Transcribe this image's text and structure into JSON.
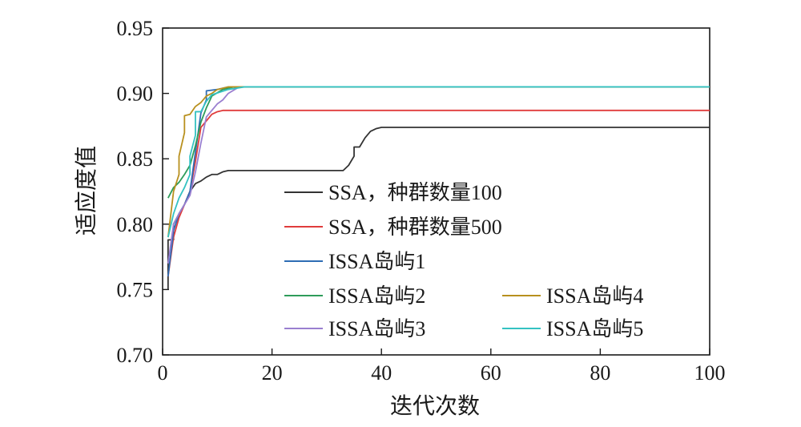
{
  "chart_data": {
    "type": "line",
    "xlabel": "迭代次数",
    "ylabel": "适应度值",
    "xlim": [
      0,
      100
    ],
    "ylim": [
      0.7,
      0.95
    ],
    "xticks": [
      0,
      20,
      40,
      60,
      80,
      100
    ],
    "yticks": [
      0.7,
      0.75,
      0.8,
      0.85,
      0.9,
      0.95
    ],
    "xtick_labels": [
      "0",
      "20",
      "40",
      "60",
      "80",
      "100"
    ],
    "ytick_labels": [
      "0.70",
      "0.75",
      "0.80",
      "0.85",
      "0.90",
      "0.95"
    ],
    "grid": false,
    "legend_position": "inside-lower-center",
    "series": [
      {
        "name": "SSA，种群数量100",
        "color": "#333333",
        "points": [
          [
            1,
            0.75
          ],
          [
            1,
            0.788
          ],
          [
            2,
            0.788
          ],
          [
            2,
            0.8
          ],
          [
            3,
            0.808
          ],
          [
            4,
            0.815
          ],
          [
            5,
            0.825
          ],
          [
            6,
            0.831
          ],
          [
            7,
            0.833
          ],
          [
            8,
            0.836
          ],
          [
            9,
            0.838
          ],
          [
            10,
            0.838
          ],
          [
            11,
            0.84
          ],
          [
            12,
            0.841
          ],
          [
            20,
            0.841
          ],
          [
            30,
            0.841
          ],
          [
            33,
            0.841
          ],
          [
            34,
            0.845
          ],
          [
            35,
            0.852
          ],
          [
            35,
            0.859
          ],
          [
            36,
            0.859
          ],
          [
            37,
            0.866
          ],
          [
            38,
            0.871
          ],
          [
            39,
            0.873
          ],
          [
            40,
            0.874
          ],
          [
            100,
            0.874
          ]
        ]
      },
      {
        "name": "SSA，种群数量500",
        "color": "#e03c3c",
        "points": [
          [
            1,
            0.76
          ],
          [
            2,
            0.79
          ],
          [
            3,
            0.805
          ],
          [
            4,
            0.815
          ],
          [
            5,
            0.825
          ],
          [
            6,
            0.848
          ],
          [
            7,
            0.874
          ],
          [
            8,
            0.879
          ],
          [
            9,
            0.884
          ],
          [
            10,
            0.886
          ],
          [
            11,
            0.887
          ],
          [
            100,
            0.887
          ]
        ]
      },
      {
        "name": "ISSA岛屿1",
        "color": "#2e6db4",
        "points": [
          [
            1,
            0.76
          ],
          [
            2,
            0.795
          ],
          [
            3,
            0.808
          ],
          [
            4,
            0.815
          ],
          [
            5,
            0.825
          ],
          [
            6,
            0.855
          ],
          [
            7,
            0.885
          ],
          [
            8,
            0.895
          ],
          [
            8,
            0.902
          ],
          [
            10,
            0.903
          ],
          [
            12,
            0.905
          ],
          [
            100,
            0.905
          ]
        ]
      },
      {
        "name": "ISSA岛屿2",
        "color": "#2e9c5a",
        "points": [
          [
            1,
            0.82
          ],
          [
            2,
            0.828
          ],
          [
            3,
            0.832
          ],
          [
            4,
            0.838
          ],
          [
            5,
            0.845
          ],
          [
            6,
            0.86
          ],
          [
            7,
            0.878
          ],
          [
            8,
            0.889
          ],
          [
            9,
            0.898
          ],
          [
            11,
            0.903
          ],
          [
            13,
            0.905
          ],
          [
            100,
            0.905
          ]
        ]
      },
      {
        "name": "ISSA岛屿3",
        "color": "#9a7fd0",
        "points": [
          [
            1,
            0.77
          ],
          [
            2,
            0.8
          ],
          [
            3,
            0.808
          ],
          [
            4,
            0.815
          ],
          [
            5,
            0.822
          ],
          [
            6,
            0.84
          ],
          [
            7,
            0.862
          ],
          [
            8,
            0.882
          ],
          [
            9,
            0.887
          ],
          [
            10,
            0.892
          ],
          [
            11,
            0.895
          ],
          [
            12,
            0.9
          ],
          [
            14,
            0.905
          ],
          [
            100,
            0.905
          ]
        ]
      },
      {
        "name": "ISSA岛屿4",
        "color": "#b8901e",
        "points": [
          [
            1,
            0.79
          ],
          [
            2,
            0.825
          ],
          [
            3,
            0.838
          ],
          [
            3,
            0.852
          ],
          [
            4,
            0.87
          ],
          [
            4,
            0.883
          ],
          [
            5,
            0.884
          ],
          [
            6,
            0.89
          ],
          [
            7,
            0.893
          ],
          [
            8,
            0.898
          ],
          [
            9,
            0.9
          ],
          [
            10,
            0.903
          ],
          [
            12,
            0.905
          ],
          [
            100,
            0.905
          ]
        ]
      },
      {
        "name": "ISSA岛屿5",
        "color": "#34c2c2",
        "points": [
          [
            1,
            0.79
          ],
          [
            2,
            0.808
          ],
          [
            3,
            0.82
          ],
          [
            4,
            0.828
          ],
          [
            5,
            0.838
          ],
          [
            5,
            0.852
          ],
          [
            6,
            0.868
          ],
          [
            6,
            0.886
          ],
          [
            7,
            0.886
          ],
          [
            8,
            0.894
          ],
          [
            9,
            0.899
          ],
          [
            12,
            0.903
          ],
          [
            15,
            0.905
          ],
          [
            100,
            0.905
          ]
        ]
      }
    ]
  }
}
